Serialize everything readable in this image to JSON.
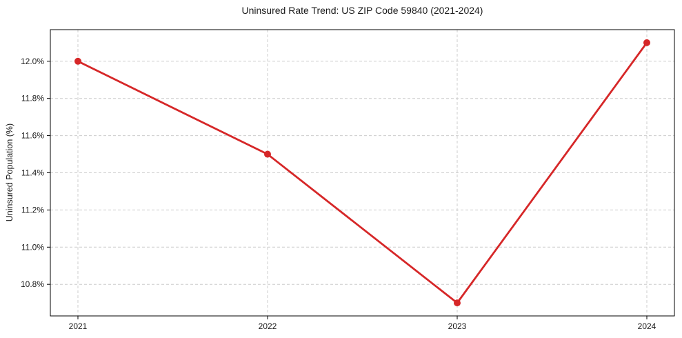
{
  "chart_data": {
    "type": "line",
    "title": "Uninsured Rate Trend: US ZIP Code 59840 (2021-2024)",
    "xlabel": "",
    "ylabel": "Uninsured Population (%)",
    "categories": [
      "2021",
      "2022",
      "2023",
      "2024"
    ],
    "values": [
      12.0,
      11.5,
      10.7,
      12.1
    ],
    "ylim": [
      10.63,
      12.17
    ],
    "yticks": [
      10.8,
      11.0,
      11.2,
      11.4,
      11.6,
      11.8,
      12.0
    ],
    "ytick_suffix": "%",
    "grid": true,
    "grid_style": "dashed",
    "legend": "none",
    "marker": "circle",
    "colors": {
      "line": "#d62728",
      "marker": "#d62728",
      "grid": "#cccccc",
      "axis": "#000000",
      "text": "#1a1a1a",
      "background": "#ffffff"
    }
  }
}
